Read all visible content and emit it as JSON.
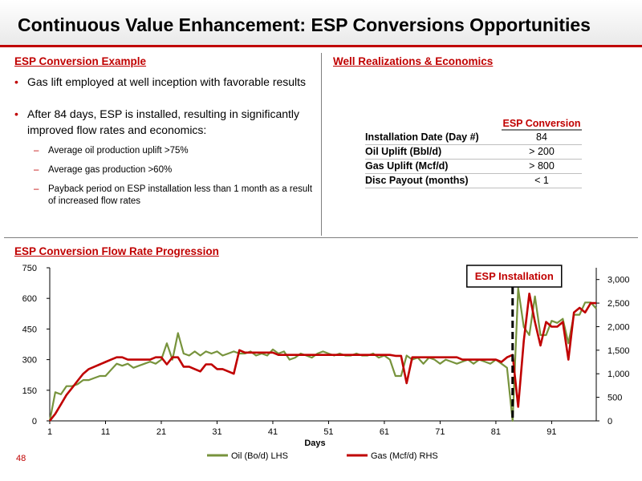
{
  "title": "Continuous Value Enhancement: ESP Conversions Opportunities",
  "left_section": {
    "heading": "ESP Conversion Example",
    "bullets": [
      "Gas lift employed at well inception with favorable results",
      "After 84 days, ESP is installed, resulting in significantly improved flow rates and economics:"
    ],
    "sub_bullets": [
      "Average oil production uplift >75%",
      "Average gas production >60%",
      "Payback period on ESP installation less than 1 month as a result of increased flow rates"
    ]
  },
  "right_section": {
    "heading": "Well Realizations & Economics",
    "table": {
      "column_header": "ESP Conversion",
      "rows": [
        {
          "label": "Installation Date (Day #)",
          "value": "84"
        },
        {
          "label": "Oil Uplift (Bbl/d)",
          "value": "> 200"
        },
        {
          "label": "Gas Uplift (Mcf/d)",
          "value": "> 800"
        },
        {
          "label": "Disc Payout (months)",
          "value": "< 1"
        }
      ]
    }
  },
  "chart_heading": "ESP Conversion Flow Rate Progression",
  "page_number": "48",
  "colors": {
    "accent": "#c00000",
    "oil": "#77933c",
    "gas": "#c00000"
  },
  "chart_data": {
    "type": "line",
    "title": "",
    "xlabel": "Days",
    "ylabel_left": "",
    "ylabel_right": "",
    "x_ticks": [
      1,
      11,
      21,
      31,
      41,
      51,
      61,
      71,
      81,
      91
    ],
    "x_range": [
      1,
      99
    ],
    "ylim_left": [
      0,
      750
    ],
    "y_ticks_left": [
      "0",
      "150",
      "300",
      "450",
      "600",
      "750"
    ],
    "ylim_right": [
      0,
      3250
    ],
    "y_ticks_right": [
      "0",
      "500",
      "1,000",
      "1,500",
      "2,000",
      "2,500",
      "3,000"
    ],
    "grid": false,
    "legend_position": "bottom",
    "annotation": {
      "label": "ESP Installation",
      "day": 84
    },
    "series": [
      {
        "name": "Oil (Bo/d) LHS",
        "axis": "left",
        "x": [
          1,
          2,
          3,
          4,
          5,
          6,
          7,
          8,
          9,
          10,
          11,
          12,
          13,
          14,
          15,
          16,
          17,
          18,
          19,
          20,
          21,
          22,
          23,
          24,
          25,
          26,
          27,
          28,
          29,
          30,
          31,
          32,
          33,
          34,
          35,
          36,
          37,
          38,
          39,
          40,
          41,
          42,
          43,
          44,
          45,
          46,
          47,
          48,
          49,
          50,
          51,
          52,
          53,
          54,
          55,
          56,
          57,
          58,
          59,
          60,
          61,
          62,
          63,
          64,
          65,
          66,
          67,
          68,
          69,
          70,
          71,
          72,
          73,
          74,
          75,
          76,
          77,
          78,
          79,
          80,
          81,
          82,
          83,
          84,
          85,
          86,
          87,
          88,
          89,
          90,
          91,
          92,
          93,
          94,
          95,
          96,
          97,
          98,
          99
        ],
        "y": [
          0,
          140,
          130,
          170,
          170,
          180,
          200,
          200,
          210,
          220,
          220,
          250,
          280,
          270,
          280,
          260,
          270,
          280,
          290,
          280,
          300,
          380,
          300,
          430,
          330,
          320,
          340,
          320,
          340,
          330,
          340,
          320,
          330,
          340,
          330,
          330,
          340,
          320,
          330,
          320,
          350,
          330,
          340,
          300,
          310,
          330,
          320,
          310,
          330,
          340,
          330,
          320,
          330,
          320,
          320,
          330,
          320,
          320,
          330,
          310,
          320,
          300,
          220,
          220,
          320,
          300,
          310,
          280,
          310,
          300,
          280,
          300,
          290,
          280,
          290,
          300,
          280,
          300,
          290,
          280,
          300,
          280,
          260,
          0,
          650,
          460,
          420,
          610,
          420,
          420,
          490,
          480,
          500,
          380,
          520,
          520,
          580,
          580,
          550
        ]
      },
      {
        "name": "Gas (Mcf/d) RHS",
        "axis": "right",
        "x": [
          1,
          2,
          3,
          4,
          5,
          6,
          7,
          8,
          9,
          10,
          11,
          12,
          13,
          14,
          15,
          16,
          17,
          18,
          19,
          20,
          21,
          22,
          23,
          24,
          25,
          26,
          27,
          28,
          29,
          30,
          31,
          32,
          33,
          34,
          35,
          36,
          37,
          38,
          39,
          40,
          41,
          42,
          43,
          44,
          45,
          46,
          47,
          48,
          49,
          50,
          51,
          52,
          53,
          54,
          55,
          56,
          57,
          58,
          59,
          60,
          61,
          62,
          63,
          64,
          65,
          66,
          67,
          68,
          69,
          70,
          71,
          72,
          73,
          74,
          75,
          76,
          77,
          78,
          79,
          80,
          81,
          82,
          83,
          84,
          85,
          86,
          87,
          88,
          89,
          90,
          91,
          92,
          93,
          94,
          95,
          96,
          97,
          98,
          99
        ],
        "y": [
          0,
          150,
          350,
          550,
          700,
          850,
          1000,
          1100,
          1150,
          1200,
          1250,
          1300,
          1350,
          1350,
          1300,
          1300,
          1300,
          1300,
          1300,
          1350,
          1350,
          1200,
          1350,
          1350,
          1150,
          1150,
          1100,
          1050,
          1200,
          1200,
          1100,
          1100,
          1050,
          1000,
          1500,
          1450,
          1450,
          1450,
          1450,
          1450,
          1450,
          1400,
          1400,
          1400,
          1400,
          1400,
          1400,
          1400,
          1400,
          1400,
          1400,
          1400,
          1400,
          1400,
          1400,
          1400,
          1400,
          1400,
          1400,
          1400,
          1400,
          1400,
          1380,
          1380,
          800,
          1350,
          1350,
          1350,
          1350,
          1350,
          1350,
          1350,
          1350,
          1350,
          1300,
          1300,
          1300,
          1300,
          1300,
          1300,
          1300,
          1250,
          1350,
          1400,
          300,
          1700,
          2700,
          2100,
          1600,
          2100,
          2000,
          2000,
          2100,
          1300,
          2300,
          2400,
          2300,
          2500,
          2500
        ]
      }
    ]
  }
}
